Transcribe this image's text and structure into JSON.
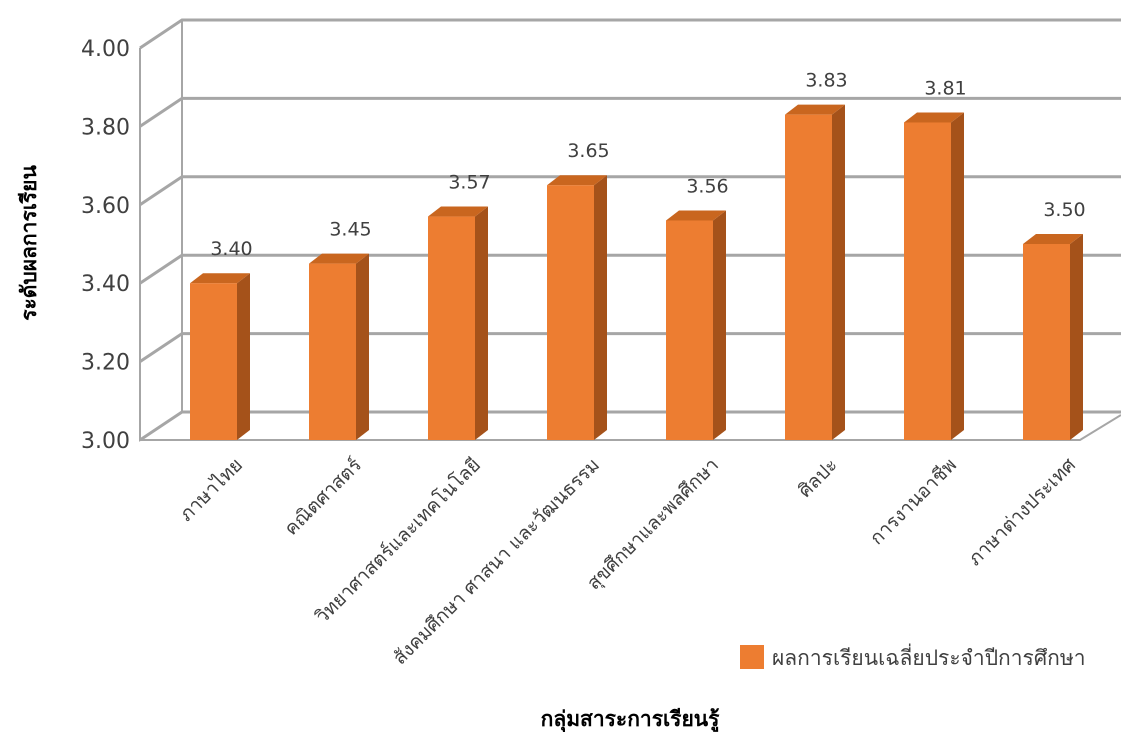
{
  "chart_data": {
    "type": "bar",
    "title": "",
    "xlabel": "กลุ่มสาระการเรียนรู้",
    "ylabel": "ระดับผลการเรียน",
    "ylim": [
      3.0,
      4.0
    ],
    "yticks": [
      "3.00",
      "3.20",
      "3.40",
      "3.60",
      "3.80",
      "4.00"
    ],
    "categories": [
      "ภาษาไทย",
      "คณิตศาสตร์",
      "วิทยาศาสตร์และเทคโนโลยี",
      "สังคมศึกษา ศาสนา และวัฒนธรรม",
      "สุขศึกษาและพลศึกษา",
      "ศิลปะ",
      "การงานอาชีพ",
      "ภาษาต่างประเทศ"
    ],
    "series": [
      {
        "name": "ผลการเรียนเฉลี่ยประจำปีการศึกษา",
        "values": [
          3.4,
          3.45,
          3.57,
          3.65,
          3.56,
          3.83,
          3.81,
          3.5
        ],
        "labels": [
          "3.40",
          "3.45",
          "3.57",
          "3.65",
          "3.56",
          "3.83",
          "3.81",
          "3.50"
        ]
      }
    ],
    "grid": true,
    "legend": "bottom-right",
    "colors": {
      "bar_front": "#ED7D31",
      "bar_side": "#A5521A",
      "bar_top": "#C9661F",
      "grid": "#A6A6A6"
    }
  }
}
